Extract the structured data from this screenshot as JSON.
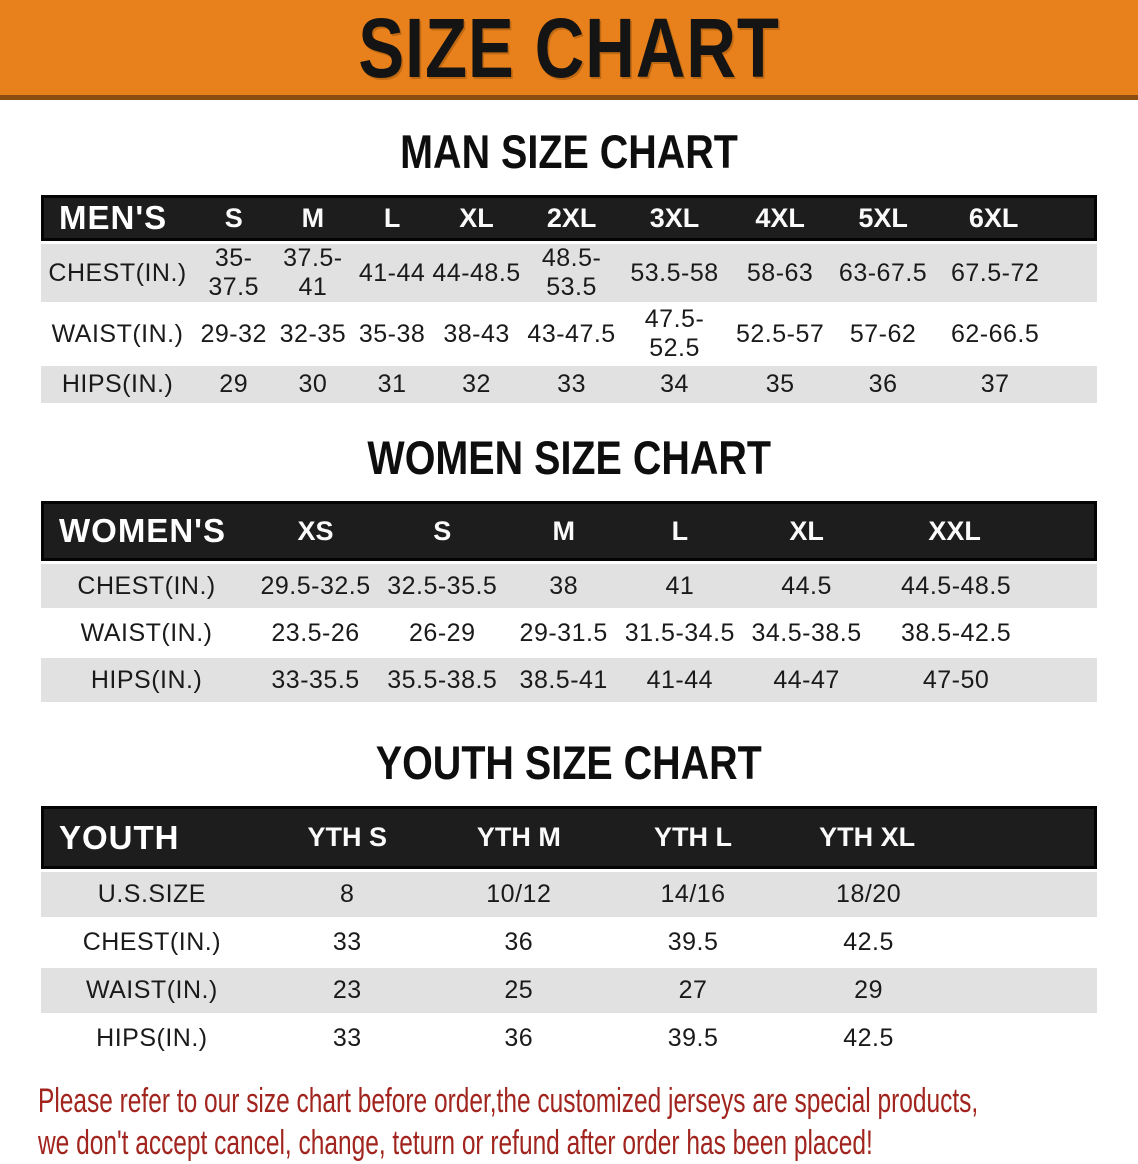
{
  "banner": {
    "title": "SIZE CHART"
  },
  "colors": {
    "banner_bg": "#E8811C",
    "banner_edge": "#8A4F10",
    "header_bar_bg": "#1D1D1D",
    "row_stripe": "#E1E1E1",
    "disclaimer_text": "#A1251E"
  },
  "sections": {
    "men": {
      "title": "MAN SIZE CHART",
      "table": {
        "header": [
          "MEN'S",
          "S",
          "M",
          "L",
          "XL",
          "2XL",
          "3XL",
          "4XL",
          "5XL",
          "6XL"
        ],
        "rows": [
          [
            "CHEST(IN.)",
            "35-37.5",
            "37.5-41",
            "41-44",
            "44-48.5",
            "48.5-53.5",
            "53.5-58",
            "58-63",
            "63-67.5",
            "67.5-72"
          ],
          [
            "WAIST(IN.)",
            "29-32",
            "32-35",
            "35-38",
            "38-43",
            "43-47.5",
            "47.5-52.5",
            "52.5-57",
            "57-62",
            "62-66.5"
          ],
          [
            "HIPS(IN.)",
            "29",
            "30",
            "31",
            "32",
            "33",
            "34",
            "35",
            "36",
            "37"
          ]
        ]
      }
    },
    "women": {
      "title": "WOMEN SIZE CHART",
      "table": {
        "header": [
          "WOMEN'S",
          "XS",
          "S",
          "M",
          "L",
          "XL",
          "XXL"
        ],
        "rows": [
          [
            "CHEST(IN.)",
            "29.5-32.5",
            "32.5-35.5",
            "38",
            "41",
            "44.5",
            "44.5-48.5"
          ],
          [
            "WAIST(IN.)",
            "23.5-26",
            "26-29",
            "29-31.5",
            "31.5-34.5",
            "34.5-38.5",
            "38.5-42.5"
          ],
          [
            "HIPS(IN.)",
            "33-35.5",
            "35.5-38.5",
            "38.5-41",
            "41-44",
            "44-47",
            "47-50"
          ]
        ]
      }
    },
    "youth": {
      "title": "YOUTH SIZE CHART",
      "table": {
        "header": [
          "YOUTH",
          "YTH S",
          "YTH M",
          "YTH L",
          "YTH XL"
        ],
        "rows": [
          [
            "U.S.SIZE",
            "8",
            "10/12",
            "14/16",
            "18/20"
          ],
          [
            "CHEST(IN.)",
            "33",
            "36",
            "39.5",
            "42.5"
          ],
          [
            "WAIST(IN.)",
            "23",
            "25",
            "27",
            "29"
          ],
          [
            "HIPS(IN.)",
            "33",
            "36",
            "39.5",
            "42.5"
          ]
        ]
      }
    }
  },
  "disclaimer": {
    "line1": "Please refer to our size chart before order,the customized jerseys are special products,",
    "line2": "we don't accept cancel, change, teturn or refund after order has been placed!"
  }
}
